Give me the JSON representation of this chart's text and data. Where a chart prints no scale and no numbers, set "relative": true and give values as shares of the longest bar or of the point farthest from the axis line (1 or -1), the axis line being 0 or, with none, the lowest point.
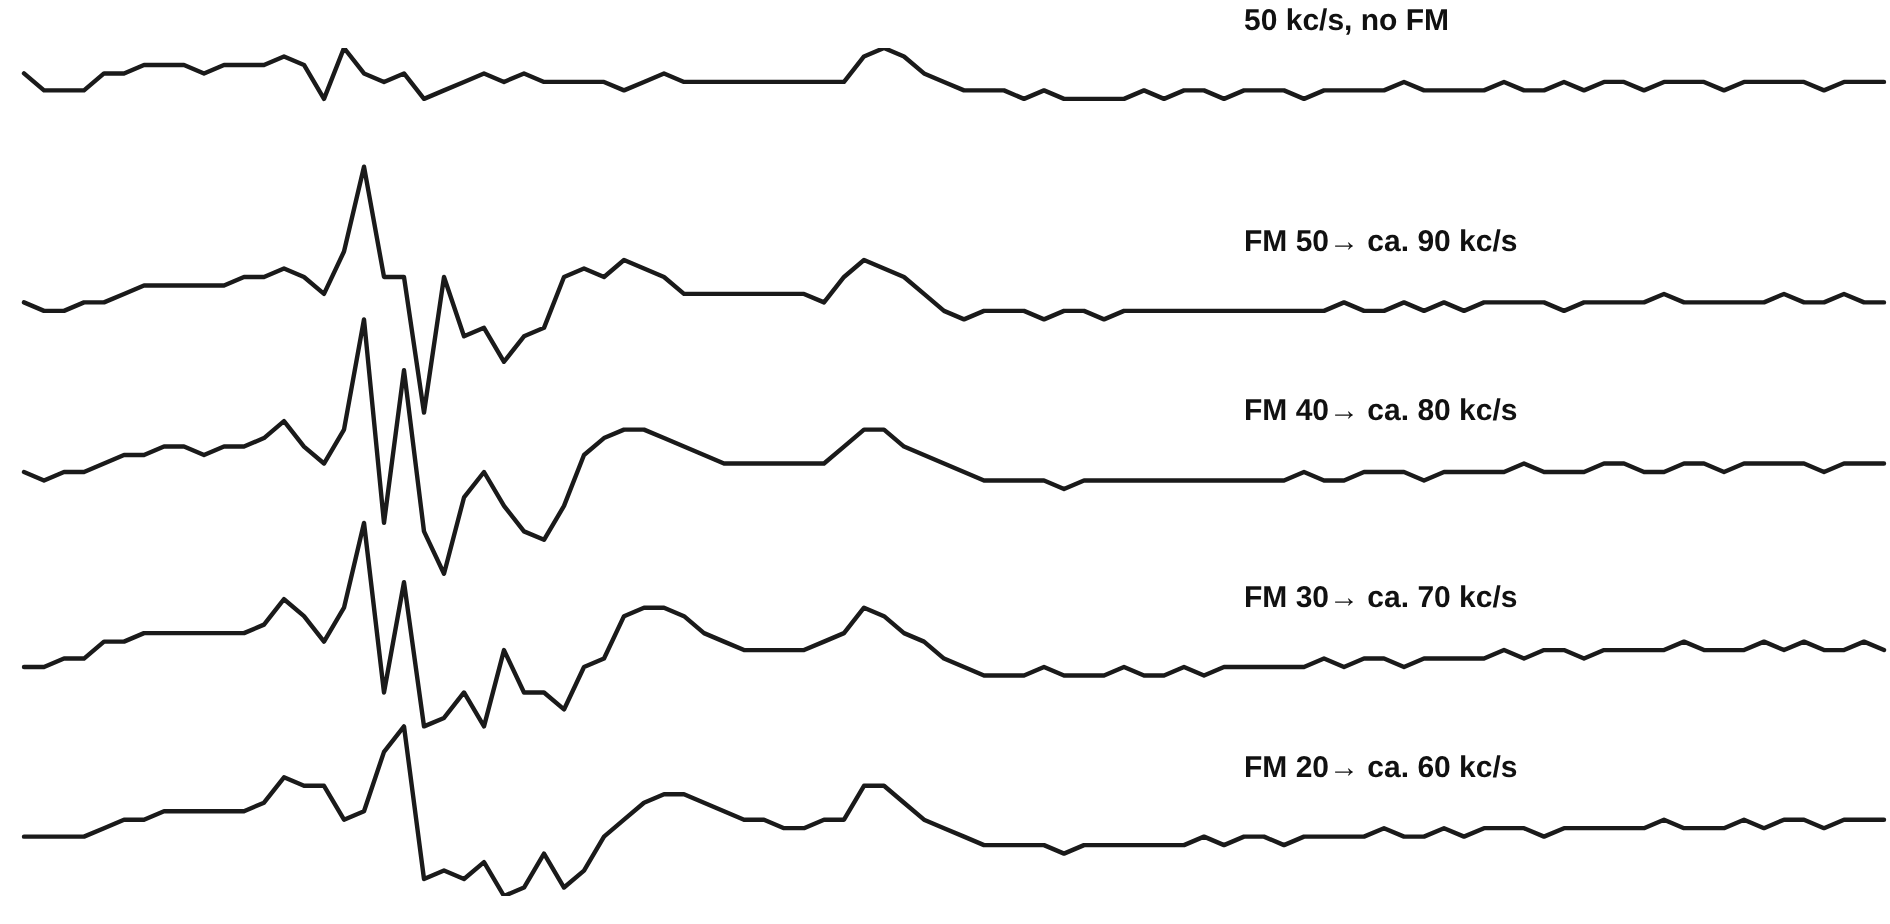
{
  "chart_data": {
    "type": "line",
    "relative": true,
    "marker": "none",
    "categories": [
      null,
      null,
      null,
      null,
      null,
      null,
      null,
      null,
      null,
      null,
      null,
      null,
      null,
      null,
      null,
      null,
      null,
      null,
      null,
      null,
      null,
      null,
      null,
      null,
      null,
      null,
      null,
      null,
      null,
      null,
      null,
      null,
      null,
      null,
      null,
      null,
      null,
      null,
      null,
      null,
      null,
      null,
      null,
      null,
      null,
      null,
      null,
      null,
      null,
      null,
      null,
      null,
      null,
      null,
      null,
      null,
      null,
      null,
      null,
      null,
      null,
      null,
      null,
      null,
      null,
      null,
      null,
      null,
      null,
      null,
      null,
      null,
      null,
      null,
      null,
      null,
      null,
      null,
      null,
      null,
      null,
      null,
      null,
      null,
      null,
      null,
      null,
      null,
      null,
      null,
      null,
      null,
      null,
      null
    ],
    "series": [
      {
        "name": "50 kc/s,  no FM",
        "color": "#1a1a1a",
        "values": [
          0.97,
          0.95,
          0.95,
          0.95,
          0.97,
          0.97,
          0.98,
          0.98,
          0.98,
          0.97,
          0.98,
          0.98,
          0.98,
          0.99,
          0.98,
          0.94,
          1.0,
          0.97,
          0.96,
          0.97,
          0.94,
          0.95,
          0.96,
          0.97,
          0.96,
          0.97,
          0.96,
          0.96,
          0.96,
          0.96,
          0.95,
          0.96,
          0.97,
          0.96,
          0.96,
          0.96,
          0.96,
          0.96,
          0.96,
          0.96,
          0.96,
          0.96,
          0.99,
          1.0,
          0.99,
          0.97,
          0.96,
          0.95,
          0.95,
          0.95,
          0.94,
          0.95,
          0.94,
          0.94,
          0.94,
          0.94,
          0.95,
          0.94,
          0.95,
          0.95,
          0.94,
          0.95,
          0.95,
          0.95,
          0.94,
          0.95,
          0.95,
          0.95,
          0.95,
          0.96,
          0.95,
          0.95,
          0.95,
          0.95,
          0.96,
          0.95,
          0.95,
          0.96,
          0.95,
          0.96,
          0.96,
          0.95,
          0.96,
          0.96,
          0.96,
          0.95,
          0.96,
          0.96,
          0.96,
          0.96,
          0.95,
          0.96,
          0.96,
          0.96
        ]
      },
      {
        "name": "FM  50→ ca. 90 kc/s",
        "color": "#1a1a1a",
        "values": [
          0.7,
          0.69,
          0.69,
          0.7,
          0.7,
          0.71,
          0.72,
          0.72,
          0.72,
          0.72,
          0.72,
          0.73,
          0.73,
          0.74,
          0.73,
          0.71,
          0.76,
          0.86,
          0.73,
          0.73,
          0.57,
          0.73,
          0.66,
          0.67,
          0.63,
          0.66,
          0.67,
          0.73,
          0.74,
          0.73,
          0.75,
          0.74,
          0.73,
          0.71,
          0.71,
          0.71,
          0.71,
          0.71,
          0.71,
          0.71,
          0.7,
          0.73,
          0.75,
          0.74,
          0.73,
          0.71,
          0.69,
          0.68,
          0.69,
          0.69,
          0.69,
          0.68,
          0.69,
          0.69,
          0.68,
          0.69,
          0.69,
          0.69,
          0.69,
          0.69,
          0.69,
          0.69,
          0.69,
          0.69,
          0.69,
          0.69,
          0.7,
          0.69,
          0.69,
          0.7,
          0.69,
          0.7,
          0.69,
          0.7,
          0.7,
          0.7,
          0.7,
          0.69,
          0.7,
          0.7,
          0.7,
          0.7,
          0.71,
          0.7,
          0.7,
          0.7,
          0.7,
          0.7,
          0.71,
          0.7,
          0.7,
          0.71,
          0.7,
          0.7
        ]
      },
      {
        "name": "FM  40→ ca. 80 kc/s",
        "color": "#1a1a1a",
        "values": [
          0.5,
          0.49,
          0.5,
          0.5,
          0.51,
          0.52,
          0.52,
          0.53,
          0.53,
          0.52,
          0.53,
          0.53,
          0.54,
          0.56,
          0.53,
          0.51,
          0.55,
          0.68,
          0.44,
          0.62,
          0.43,
          0.38,
          0.47,
          0.5,
          0.46,
          0.43,
          0.42,
          0.46,
          0.52,
          0.54,
          0.55,
          0.55,
          0.54,
          0.53,
          0.52,
          0.51,
          0.51,
          0.51,
          0.51,
          0.51,
          0.51,
          0.53,
          0.55,
          0.55,
          0.53,
          0.52,
          0.51,
          0.5,
          0.49,
          0.49,
          0.49,
          0.49,
          0.48,
          0.49,
          0.49,
          0.49,
          0.49,
          0.49,
          0.49,
          0.49,
          0.49,
          0.49,
          0.49,
          0.49,
          0.5,
          0.49,
          0.49,
          0.5,
          0.5,
          0.5,
          0.49,
          0.5,
          0.5,
          0.5,
          0.5,
          0.51,
          0.5,
          0.5,
          0.5,
          0.51,
          0.51,
          0.5,
          0.5,
          0.51,
          0.51,
          0.5,
          0.51,
          0.51,
          0.51,
          0.51,
          0.5,
          0.51,
          0.51,
          0.51
        ]
      },
      {
        "name": "FM  30→ ca. 70 kc/s",
        "color": "#1a1a1a",
        "values": [
          0.27,
          0.27,
          0.28,
          0.28,
          0.3,
          0.3,
          0.31,
          0.31,
          0.31,
          0.31,
          0.31,
          0.31,
          0.32,
          0.35,
          0.33,
          0.3,
          0.34,
          0.44,
          0.24,
          0.37,
          0.2,
          0.21,
          0.24,
          0.2,
          0.29,
          0.24,
          0.24,
          0.22,
          0.27,
          0.28,
          0.33,
          0.34,
          0.34,
          0.33,
          0.31,
          0.3,
          0.29,
          0.29,
          0.29,
          0.29,
          0.3,
          0.31,
          0.34,
          0.33,
          0.31,
          0.3,
          0.28,
          0.27,
          0.26,
          0.26,
          0.26,
          0.27,
          0.26,
          0.26,
          0.26,
          0.27,
          0.26,
          0.26,
          0.27,
          0.26,
          0.27,
          0.27,
          0.27,
          0.27,
          0.27,
          0.28,
          0.27,
          0.28,
          0.28,
          0.27,
          0.28,
          0.28,
          0.28,
          0.28,
          0.29,
          0.28,
          0.29,
          0.29,
          0.28,
          0.29,
          0.29,
          0.29,
          0.29,
          0.3,
          0.29,
          0.29,
          0.29,
          0.3,
          0.29,
          0.3,
          0.29,
          0.29,
          0.3,
          0.29
        ]
      },
      {
        "name": "FM  20→ ca. 60 kc/s",
        "color": "#1a1a1a",
        "values": [
          0.07,
          0.07,
          0.07,
          0.07,
          0.08,
          0.09,
          0.09,
          0.1,
          0.1,
          0.1,
          0.1,
          0.1,
          0.11,
          0.14,
          0.13,
          0.13,
          0.09,
          0.1,
          0.17,
          0.2,
          0.02,
          0.03,
          0.02,
          0.04,
          0.0,
          0.01,
          0.05,
          0.01,
          0.03,
          0.07,
          0.09,
          0.11,
          0.12,
          0.12,
          0.11,
          0.1,
          0.09,
          0.09,
          0.08,
          0.08,
          0.09,
          0.09,
          0.13,
          0.13,
          0.11,
          0.09,
          0.08,
          0.07,
          0.06,
          0.06,
          0.06,
          0.06,
          0.05,
          0.06,
          0.06,
          0.06,
          0.06,
          0.06,
          0.06,
          0.07,
          0.06,
          0.07,
          0.07,
          0.06,
          0.07,
          0.07,
          0.07,
          0.07,
          0.08,
          0.07,
          0.07,
          0.08,
          0.07,
          0.08,
          0.08,
          0.08,
          0.07,
          0.08,
          0.08,
          0.08,
          0.08,
          0.08,
          0.09,
          0.08,
          0.08,
          0.08,
          0.09,
          0.08,
          0.09,
          0.09,
          0.08,
          0.09,
          0.09,
          0.09
        ]
      }
    ]
  }
}
